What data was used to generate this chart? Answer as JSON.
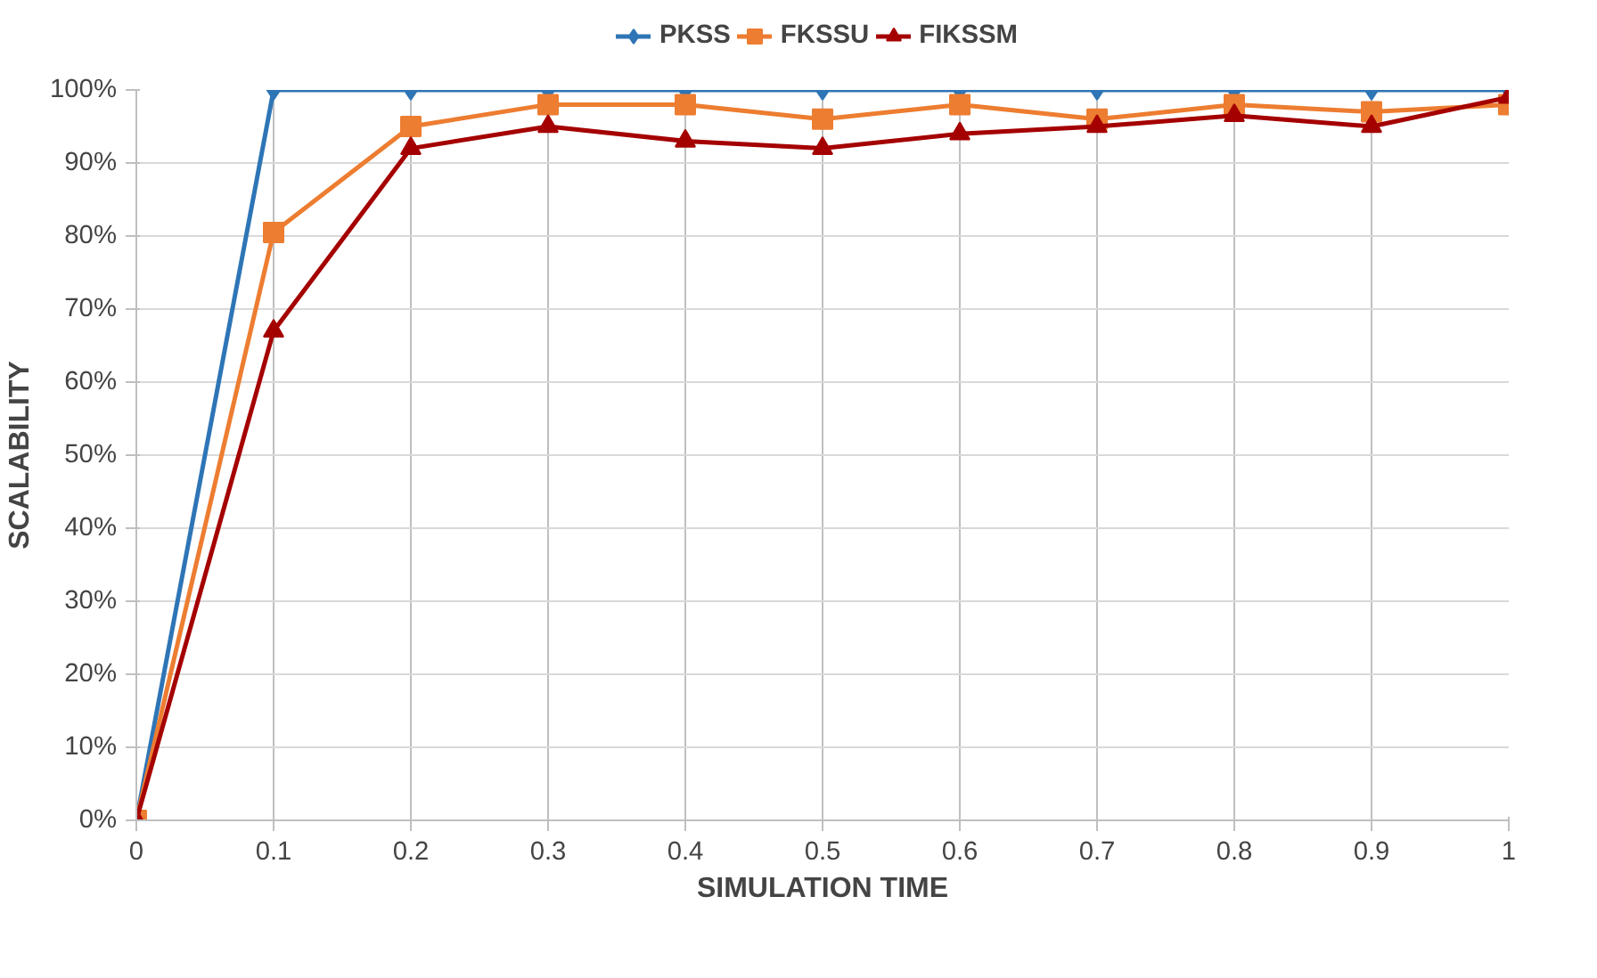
{
  "chart_data": {
    "type": "line",
    "xlabel": "SIMULATION TIME",
    "ylabel": "SCALABILITY",
    "x": [
      0,
      0.1,
      0.2,
      0.3,
      0.4,
      0.5,
      0.6,
      0.7,
      0.8,
      0.9,
      1
    ],
    "series": [
      {
        "name": "PKSS",
        "color": "#2e75b6",
        "marker": "diamond",
        "values": [
          0,
          100,
          100,
          100,
          100,
          100,
          100,
          100,
          100,
          100,
          100
        ]
      },
      {
        "name": "FKSSU",
        "color": "#ed7d31",
        "marker": "square",
        "values": [
          0,
          80.5,
          95,
          98,
          98,
          96,
          98,
          96,
          98,
          97,
          98
        ]
      },
      {
        "name": "FIKSSM",
        "color": "#a50000",
        "marker": "triangle",
        "values": [
          0,
          67,
          92,
          95,
          93,
          92,
          94,
          95,
          96.5,
          95,
          99
        ]
      }
    ],
    "xlim": [
      0,
      1
    ],
    "xticks": [
      0,
      0.1,
      0.2,
      0.3,
      0.4,
      0.5,
      0.6,
      0.7,
      0.8,
      0.9,
      1
    ],
    "ylim": [
      0,
      100
    ],
    "yticks": [
      {
        "value": 0,
        "label": "0%"
      },
      {
        "value": 10,
        "label": "10%"
      },
      {
        "value": 20,
        "label": "20%"
      },
      {
        "value": 30,
        "label": "30%"
      },
      {
        "value": 40,
        "label": "40%"
      },
      {
        "value": 50,
        "label": "50%"
      },
      {
        "value": 60,
        "label": "60%"
      },
      {
        "value": 70,
        "label": "70%"
      },
      {
        "value": 80,
        "label": "80%"
      },
      {
        "value": 90,
        "label": "90%"
      },
      {
        "value": 100,
        "label": "100%"
      }
    ],
    "grid": true,
    "legend": "top"
  }
}
